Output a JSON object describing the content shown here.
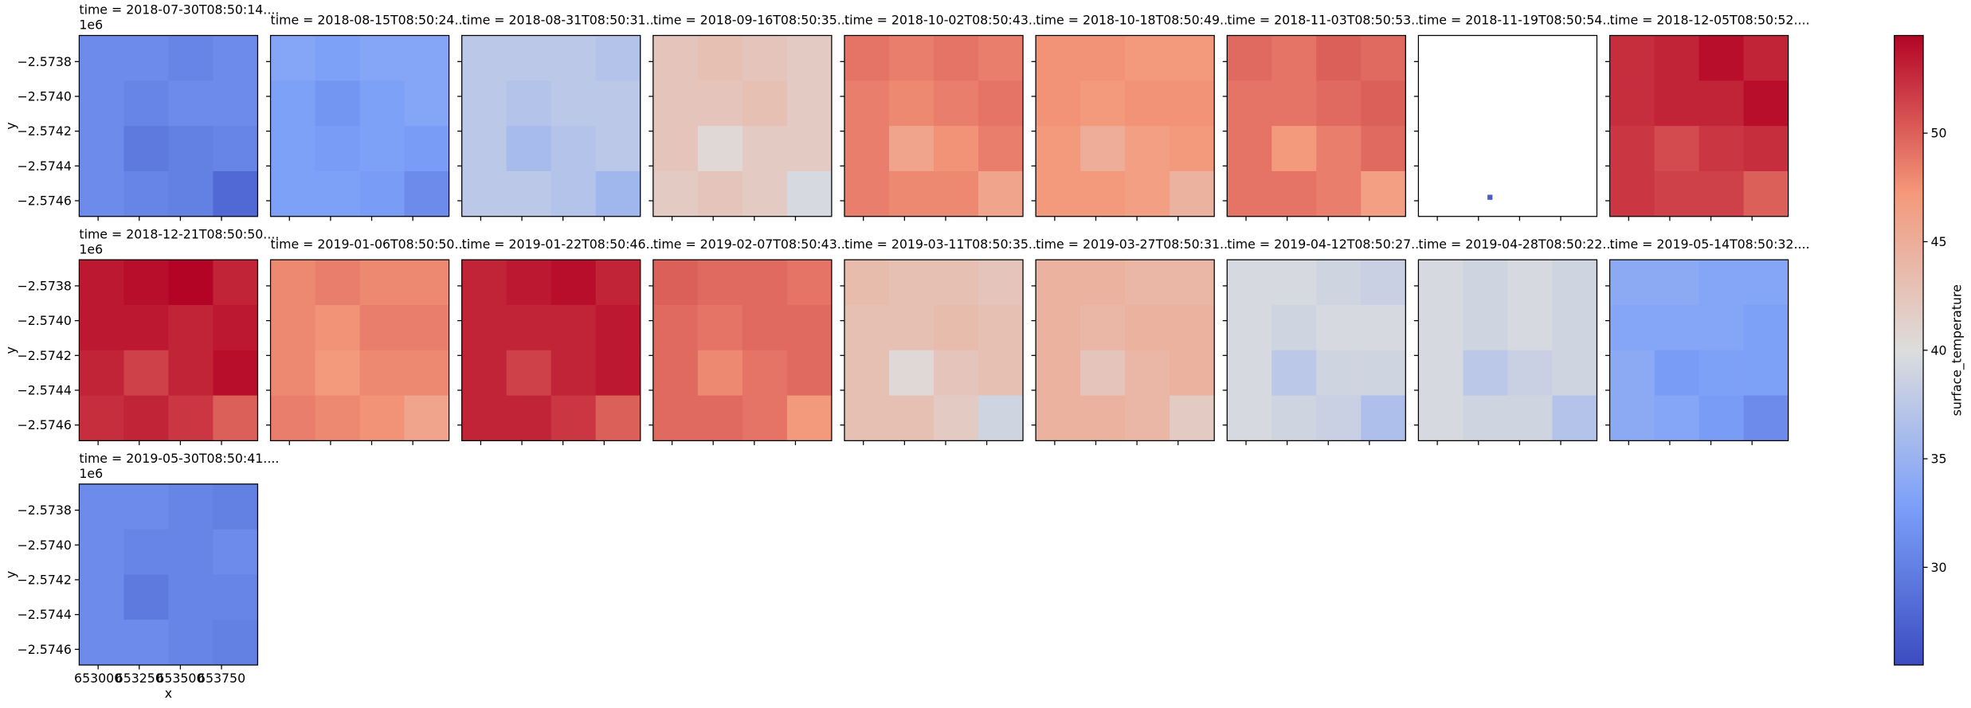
{
  "chart_data": {
    "type": "heatmap_grid",
    "columns": 9,
    "xlabel": "x",
    "ylabel": "y",
    "y_offset_label": "1e6",
    "xlim": [
      652885,
      653970
    ],
    "ylim": [
      -2574690,
      -2573650
    ],
    "xticks": [
      653000,
      653250,
      653500,
      653750
    ],
    "yticks": [
      {
        "value": -2573800,
        "label": "−2.5738"
      },
      {
        "value": -2574000,
        "label": "−2.5740"
      },
      {
        "value": -2574200,
        "label": "−2.5742"
      },
      {
        "value": -2574400,
        "label": "−2.5744"
      },
      {
        "value": -2574600,
        "label": "−2.5746"
      }
    ],
    "colorbar": {
      "label": "surface_temperature",
      "lim": [
        25.5,
        54.5
      ],
      "ticks": [
        30,
        35,
        40,
        45,
        50
      ],
      "colormap": [
        "#3b4cc0",
        "#7b9ff9",
        "#dddddd",
        "#f4987a",
        "#b40426"
      ]
    },
    "panels": [
      {
        "title": "time = 2018-07-30T08:50:14....",
        "values": [
          [
            31,
            31,
            30.5,
            31
          ],
          [
            31,
            30.5,
            31,
            31
          ],
          [
            31,
            29.5,
            30,
            30.5
          ],
          [
            31,
            30.5,
            30,
            28
          ]
        ]
      },
      {
        "title": "time = 2018-08-15T08:50:24....",
        "values": [
          [
            33.5,
            33,
            33.5,
            33.5
          ],
          [
            33,
            32,
            33,
            33.5
          ],
          [
            33,
            32.5,
            33,
            32.5
          ],
          [
            33,
            33,
            32.5,
            31
          ]
        ]
      },
      {
        "title": "time = 2018-08-31T08:50:31....",
        "values": [
          [
            37.5,
            37.5,
            37.5,
            37
          ],
          [
            37.5,
            37,
            37.5,
            37.5
          ],
          [
            37.5,
            36,
            37,
            37.5
          ],
          [
            37.5,
            37.5,
            37,
            35.5
          ]
        ]
      },
      {
        "title": "time = 2018-09-16T08:50:35....",
        "values": [
          [
            42.5,
            43,
            42.5,
            42
          ],
          [
            42.5,
            42.5,
            43,
            42
          ],
          [
            42.5,
            40.5,
            42,
            42
          ],
          [
            42,
            42.5,
            42,
            39.5
          ]
        ]
      },
      {
        "title": "time = 2018-10-02T08:50:43....",
        "values": [
          [
            49,
            48.5,
            49,
            48.5
          ],
          [
            48.5,
            48,
            48.5,
            49
          ],
          [
            48.5,
            46,
            47.5,
            48.5
          ],
          [
            48.5,
            48,
            48,
            46
          ]
        ]
      },
      {
        "title": "time = 2018-10-18T08:50:49....",
        "values": [
          [
            47.5,
            47.5,
            47,
            47
          ],
          [
            47.5,
            47,
            47.5,
            47.5
          ],
          [
            47,
            45,
            46.5,
            47
          ],
          [
            47,
            47,
            46.5,
            44.5
          ]
        ]
      },
      {
        "title": "time = 2018-11-03T08:50:53....",
        "values": [
          [
            49.5,
            49,
            50,
            49.5
          ],
          [
            49,
            49,
            49.5,
            50
          ],
          [
            49,
            47,
            48.5,
            49.5
          ],
          [
            49,
            49,
            48.5,
            46.5
          ]
        ]
      },
      {
        "title": "time = 2018-11-19T08:50:54....",
        "values": [
          [
            null,
            null,
            null,
            null
          ],
          [
            null,
            null,
            null,
            null
          ],
          [
            null,
            null,
            null,
            null
          ],
          [
            null,
            null,
            null,
            null
          ]
        ],
        "points": [
          {
            "x": 653320,
            "y": -2574580,
            "value": 27
          }
        ]
      },
      {
        "title": "time = 2018-12-05T08:50:52....",
        "values": [
          [
            52.5,
            53,
            54,
            53
          ],
          [
            52.5,
            53,
            53,
            54
          ],
          [
            52,
            51,
            52,
            52.5
          ],
          [
            52,
            51.5,
            51.5,
            50
          ]
        ]
      },
      {
        "title": "time = 2018-12-21T08:50:50....",
        "values": [
          [
            53.5,
            54,
            54.5,
            53
          ],
          [
            53.5,
            53.5,
            53,
            53.5
          ],
          [
            53,
            51.5,
            53,
            54
          ],
          [
            52.5,
            53,
            52,
            50
          ]
        ]
      },
      {
        "title": "time = 2019-01-06T08:50:50....",
        "values": [
          [
            48,
            48.5,
            48,
            48
          ],
          [
            48,
            47.5,
            48.5,
            48.5
          ],
          [
            48,
            47,
            48,
            48
          ],
          [
            48.5,
            48,
            47.5,
            46
          ]
        ]
      },
      {
        "title": "time = 2019-01-22T08:50:46....",
        "values": [
          [
            53,
            53.5,
            54,
            53
          ],
          [
            53,
            53,
            53,
            53.5
          ],
          [
            53,
            51.5,
            53,
            53.5
          ],
          [
            53,
            53,
            52,
            50
          ]
        ]
      },
      {
        "title": "time = 2019-02-07T08:50:43....",
        "values": [
          [
            50,
            49.5,
            49.5,
            49
          ],
          [
            49.5,
            49,
            49.5,
            49.5
          ],
          [
            49.5,
            48,
            49,
            49.5
          ],
          [
            49.5,
            49.5,
            49,
            47
          ]
        ]
      },
      {
        "title": "time = 2019-03-11T08:50:35....",
        "values": [
          [
            43.5,
            43,
            43,
            42.5
          ],
          [
            43,
            43,
            43.5,
            43
          ],
          [
            43,
            40.5,
            42.5,
            43
          ],
          [
            43,
            43,
            42,
            39
          ]
        ]
      },
      {
        "title": "time = 2019-03-27T08:50:31....",
        "values": [
          [
            44.5,
            44.5,
            44,
            44
          ],
          [
            44.5,
            44,
            44.5,
            44.5
          ],
          [
            44.5,
            42.5,
            44,
            44.5
          ],
          [
            44.5,
            44.5,
            44,
            42
          ]
        ]
      },
      {
        "title": "time = 2019-04-12T08:50:27....",
        "values": [
          [
            39.5,
            39.5,
            39,
            38.5
          ],
          [
            39.5,
            39,
            39.5,
            39.5
          ],
          [
            39.5,
            37.5,
            39,
            39
          ],
          [
            39.5,
            39,
            38.5,
            36.5
          ]
        ]
      },
      {
        "title": "time = 2019-04-28T08:50:22....",
        "values": [
          [
            39.5,
            39,
            39.5,
            39
          ],
          [
            39.5,
            39,
            39.5,
            39
          ],
          [
            39.5,
            37.5,
            38.5,
            39
          ],
          [
            39.5,
            39,
            39,
            37
          ]
        ]
      },
      {
        "title": "time = 2019-05-14T08:50:32....",
        "values": [
          [
            34,
            34,
            33.5,
            33.5
          ],
          [
            33.5,
            33.5,
            33.5,
            33
          ],
          [
            34,
            32.5,
            33,
            33
          ],
          [
            34,
            33.5,
            32.5,
            31
          ]
        ]
      },
      {
        "title": "time = 2019-05-30T08:50:41....",
        "values": [
          [
            31,
            31,
            30.5,
            30
          ],
          [
            31,
            30.5,
            30.5,
            31
          ],
          [
            31,
            29.5,
            30.5,
            30.5
          ],
          [
            31,
            31,
            30.5,
            30
          ]
        ]
      }
    ]
  }
}
